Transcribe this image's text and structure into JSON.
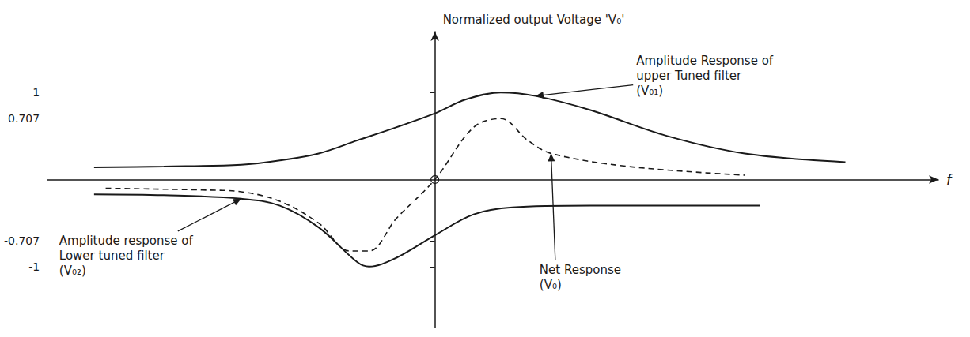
{
  "chart_data": {
    "type": "line",
    "y_label": "Normalized output Voltage 'V₀'",
    "x_label": "f",
    "xlim": [
      -5,
      6.5
    ],
    "ylim": [
      -1.7,
      1.7
    ],
    "yticks": [
      -1,
      -0.707,
      0.707,
      1
    ],
    "tick_labels": "y",
    "grid": false,
    "series": [
      {
        "name": "Amplitude Response of upper Tuned filter (V₀₁)",
        "color": "#1a1a1a",
        "line_style": "solid",
        "x": [
          -4.4,
          -3.5,
          -2.5,
          -2.0,
          -1.5,
          -1.0,
          -0.5,
          0,
          0.4,
          0.85,
          1.3,
          2.0,
          3.0,
          4.0,
          5.3
        ],
        "values": [
          0.14,
          0.15,
          0.17,
          0.22,
          0.3,
          0.45,
          0.6,
          0.76,
          0.92,
          1.0,
          0.96,
          0.8,
          0.5,
          0.3,
          0.2
        ]
      },
      {
        "name": "Amplitude response of Lower tuned filter (V₀₂)",
        "color": "#1a1a1a",
        "line_style": "solid",
        "x": [
          -4.4,
          -3.5,
          -2.5,
          -2.0,
          -1.5,
          -1.0,
          -0.85,
          -0.5,
          0,
          0.5,
          1.0,
          2.0,
          4.2
        ],
        "values": [
          -0.17,
          -0.18,
          -0.22,
          -0.3,
          -0.55,
          -0.95,
          -1.0,
          -0.9,
          -0.64,
          -0.4,
          -0.32,
          -0.3,
          -0.3
        ]
      },
      {
        "name": "Net Response (V₀)",
        "color": "#1a1a1a",
        "line_style": "dashed",
        "x": [
          -4.25,
          -3.0,
          -2.5,
          -2.0,
          -1.5,
          -1.1,
          -0.85,
          -0.5,
          0,
          0.5,
          0.85,
          1.2,
          1.5,
          2.5,
          4.0
        ],
        "values": [
          -0.1,
          -0.12,
          -0.14,
          -0.25,
          -0.5,
          -0.82,
          -0.82,
          -0.45,
          0,
          0.6,
          0.7,
          0.45,
          0.3,
          0.15,
          0.05
        ]
      }
    ]
  }
}
